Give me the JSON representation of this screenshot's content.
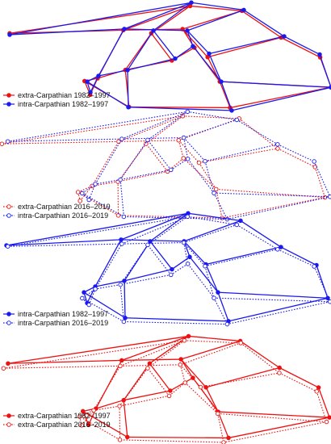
{
  "chart_data": [
    {
      "type": "line",
      "title": "",
      "legend_placement": "bottom-left",
      "series": [
        {
          "name": "extra-Carpathian 1982–1997",
          "color": "#ee1111",
          "style": "solid",
          "marker": "filled"
        },
        {
          "name": "intra-Carpathian 1982–1997",
          "color": "#1a1aee",
          "style": "solid",
          "marker": "filled"
        }
      ]
    },
    {
      "type": "line",
      "title": "",
      "legend_placement": "bottom-left",
      "series": [
        {
          "name": "extra-Carpathian 2016–2019",
          "color": "#ee1111",
          "style": "dotted",
          "marker": "open"
        },
        {
          "name": "intra-Carpathian 2016–2019",
          "color": "#1a1aee",
          "style": "dotted",
          "marker": "open"
        }
      ]
    },
    {
      "type": "line",
      "title": "",
      "legend_placement": "bottom-left",
      "series": [
        {
          "name": "intra-Carpathian 1982–1997",
          "color": "#1a1aee",
          "style": "solid",
          "marker": "filled"
        },
        {
          "name": "intra-Carpathian 2016–2019",
          "color": "#1a1aee",
          "style": "dotted",
          "marker": "open"
        }
      ]
    },
    {
      "type": "line",
      "title": "",
      "legend_placement": "bottom-left",
      "series": [
        {
          "name": "extra-Carpathian 1982–1997",
          "color": "#ee1111",
          "style": "solid",
          "marker": "filled"
        },
        {
          "name": "extra-Carpathian 2016–2019",
          "color": "#ee1111",
          "style": "dotted",
          "marker": "open"
        }
      ]
    }
  ]
}
